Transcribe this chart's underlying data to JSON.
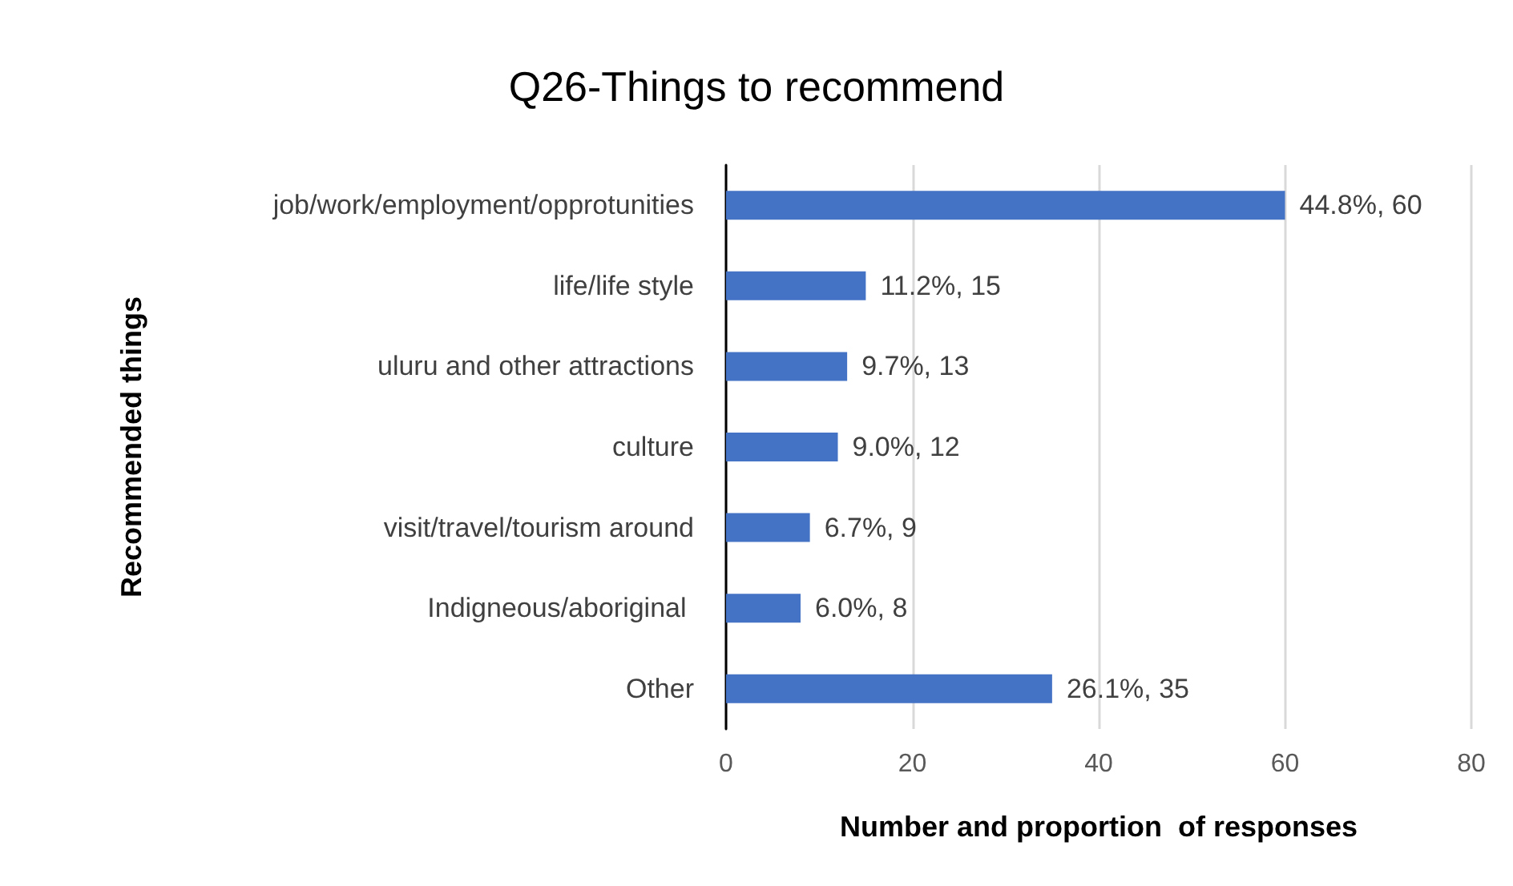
{
  "chart_data": {
    "type": "bar",
    "orientation": "horizontal",
    "title": "Q26-Things to recommend",
    "xlabel": "Number and proportion  of responses",
    "ylabel": "Recommended things",
    "categories": [
      "job/work/employment/opprotunities",
      "life/life style",
      "uluru and other attractions",
      "culture",
      "visit/travel/tourism around",
      "Indigneous/aboriginal ",
      "Other"
    ],
    "values": [
      60,
      15,
      13,
      12,
      9,
      8,
      35
    ],
    "value_labels": [
      "44.8%, 60",
      "11.2%, 15",
      "9.7%, 13",
      "9.0%, 12",
      "6.7%, 9",
      "6.0%, 8",
      "26.1%, 35"
    ],
    "color": "#4472c4",
    "xlim": [
      0,
      80
    ],
    "xticks": [
      0,
      20,
      40,
      60,
      80
    ],
    "grid": "x"
  }
}
